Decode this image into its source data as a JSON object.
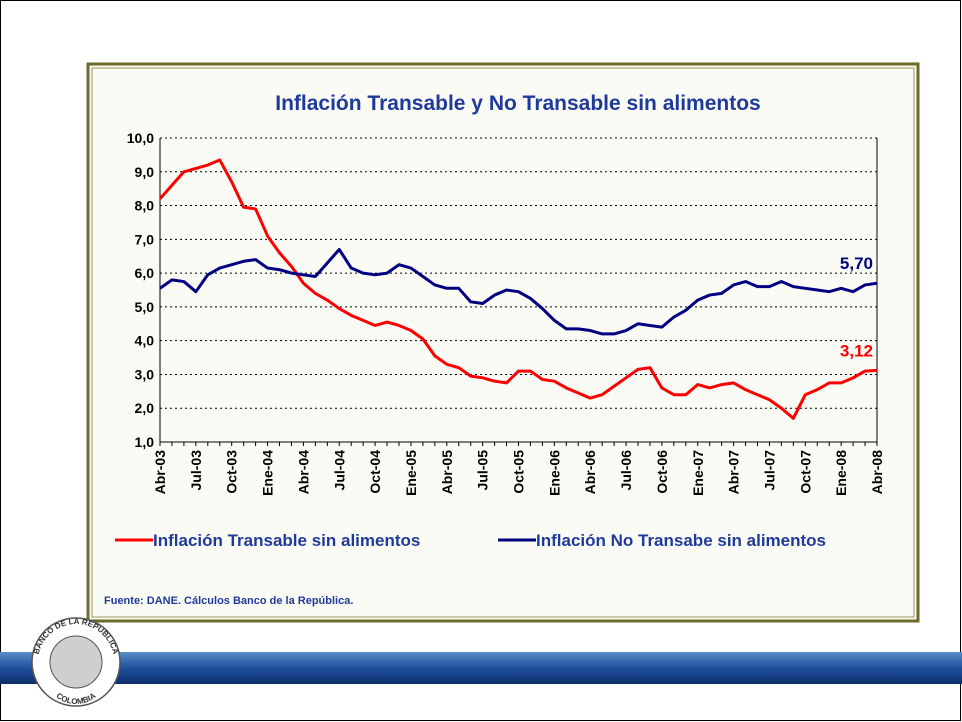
{
  "chart_data": {
    "type": "line",
    "title": "Inflación Transable y No Transable sin alimentos",
    "categories": [
      "Abr-03",
      null,
      null,
      "Jul-03",
      null,
      null,
      "Oct-03",
      null,
      null,
      "Ene-04",
      null,
      null,
      "Abr-04",
      null,
      null,
      "Jul-04",
      null,
      null,
      "Oct-04",
      null,
      null,
      "Ene-05",
      null,
      null,
      "Abr-05",
      null,
      null,
      "Jul-05",
      null,
      null,
      "Oct-05",
      null,
      null,
      "Ene-06",
      null,
      null,
      "Abr-06",
      null,
      null,
      "Jul-06",
      null,
      null,
      "Oct-06",
      null,
      null,
      "Ene-07",
      null,
      null,
      "Abr-07",
      null,
      null,
      "Jul-07",
      null,
      null,
      "Oct-07",
      null,
      null,
      "Ene-08",
      null,
      null,
      "Abr-08"
    ],
    "series": [
      {
        "name": "Inflación Transable sin alimentos",
        "color": "#ff0000",
        "values": [
          8.2,
          8.6,
          9.0,
          9.1,
          9.2,
          9.35,
          8.7,
          7.95,
          7.9,
          7.1,
          6.6,
          6.2,
          5.7,
          5.4,
          5.2,
          4.95,
          4.75,
          4.6,
          4.45,
          4.55,
          4.45,
          4.3,
          4.05,
          3.55,
          3.3,
          3.2,
          2.95,
          2.9,
          2.8,
          2.75,
          3.1,
          3.1,
          2.85,
          2.8,
          2.6,
          2.45,
          2.3,
          2.4,
          2.65,
          2.9,
          3.15,
          3.2,
          2.6,
          2.4,
          2.4,
          2.7,
          2.6,
          2.7,
          2.75,
          2.55,
          2.4,
          2.25,
          2.0,
          1.7,
          2.4,
          2.55,
          2.75,
          2.75,
          2.9,
          3.1,
          3.12
        ],
        "value_labels": [
          null,
          null,
          null,
          null,
          null,
          null,
          null,
          null,
          null,
          null,
          null,
          null,
          null,
          null,
          null,
          null,
          null,
          null,
          null,
          null,
          null,
          null,
          null,
          null,
          null,
          null,
          null,
          null,
          null,
          null,
          null,
          null,
          null,
          null,
          null,
          null,
          null,
          null,
          null,
          null,
          null,
          null,
          null,
          null,
          null,
          null,
          null,
          null,
          null,
          null,
          null,
          null,
          null,
          null,
          null,
          null,
          null,
          null,
          null,
          null,
          "3,12"
        ]
      },
      {
        "name": "Inflación No Transabe sin alimentos",
        "color": "#000080",
        "values": [
          5.55,
          5.8,
          5.75,
          5.45,
          5.95,
          6.15,
          6.25,
          6.35,
          6.4,
          6.15,
          6.1,
          6.0,
          5.95,
          5.9,
          6.3,
          6.7,
          6.15,
          6.0,
          5.95,
          6.0,
          6.25,
          6.15,
          5.9,
          5.65,
          5.55,
          5.55,
          5.15,
          5.1,
          5.35,
          5.5,
          5.45,
          5.25,
          4.95,
          4.6,
          4.35,
          4.35,
          4.3,
          4.2,
          4.2,
          4.3,
          4.5,
          4.45,
          4.4,
          4.7,
          4.9,
          5.2,
          5.35,
          5.4,
          5.65,
          5.75,
          5.6,
          5.6,
          5.75,
          5.6,
          5.55,
          5.5,
          5.45,
          5.55,
          5.45,
          5.65,
          5.7
        ],
        "value_labels": [
          null,
          null,
          null,
          null,
          null,
          null,
          null,
          null,
          null,
          null,
          null,
          null,
          null,
          null,
          null,
          null,
          null,
          null,
          null,
          null,
          null,
          null,
          null,
          null,
          null,
          null,
          null,
          null,
          null,
          null,
          null,
          null,
          null,
          null,
          null,
          null,
          null,
          null,
          null,
          null,
          null,
          null,
          null,
          null,
          null,
          null,
          null,
          null,
          null,
          null,
          null,
          null,
          null,
          null,
          null,
          null,
          null,
          null,
          null,
          null,
          "5,70"
        ]
      }
    ],
    "ylim": [
      1,
      10
    ],
    "yticks": [
      {
        "value": 1,
        "label": "1,0"
      },
      {
        "value": 2,
        "label": "2,0"
      },
      {
        "value": 3,
        "label": "3,0"
      },
      {
        "value": 4,
        "label": "4,0"
      },
      {
        "value": 5,
        "label": "5,0"
      },
      {
        "value": 6,
        "label": "6,0"
      },
      {
        "value": 7,
        "label": "7,0"
      },
      {
        "value": 8,
        "label": "8,0"
      },
      {
        "value": 9,
        "label": "9,0"
      },
      {
        "value": 10,
        "label": "10,0"
      }
    ],
    "grid": true,
    "legend": "bottom",
    "source": "Fuente: DANE. Cálculos Banco de la República."
  },
  "logo": {
    "top": "BANCO DE LA REPUBLICA",
    "bottom": "COLOMBIA"
  }
}
